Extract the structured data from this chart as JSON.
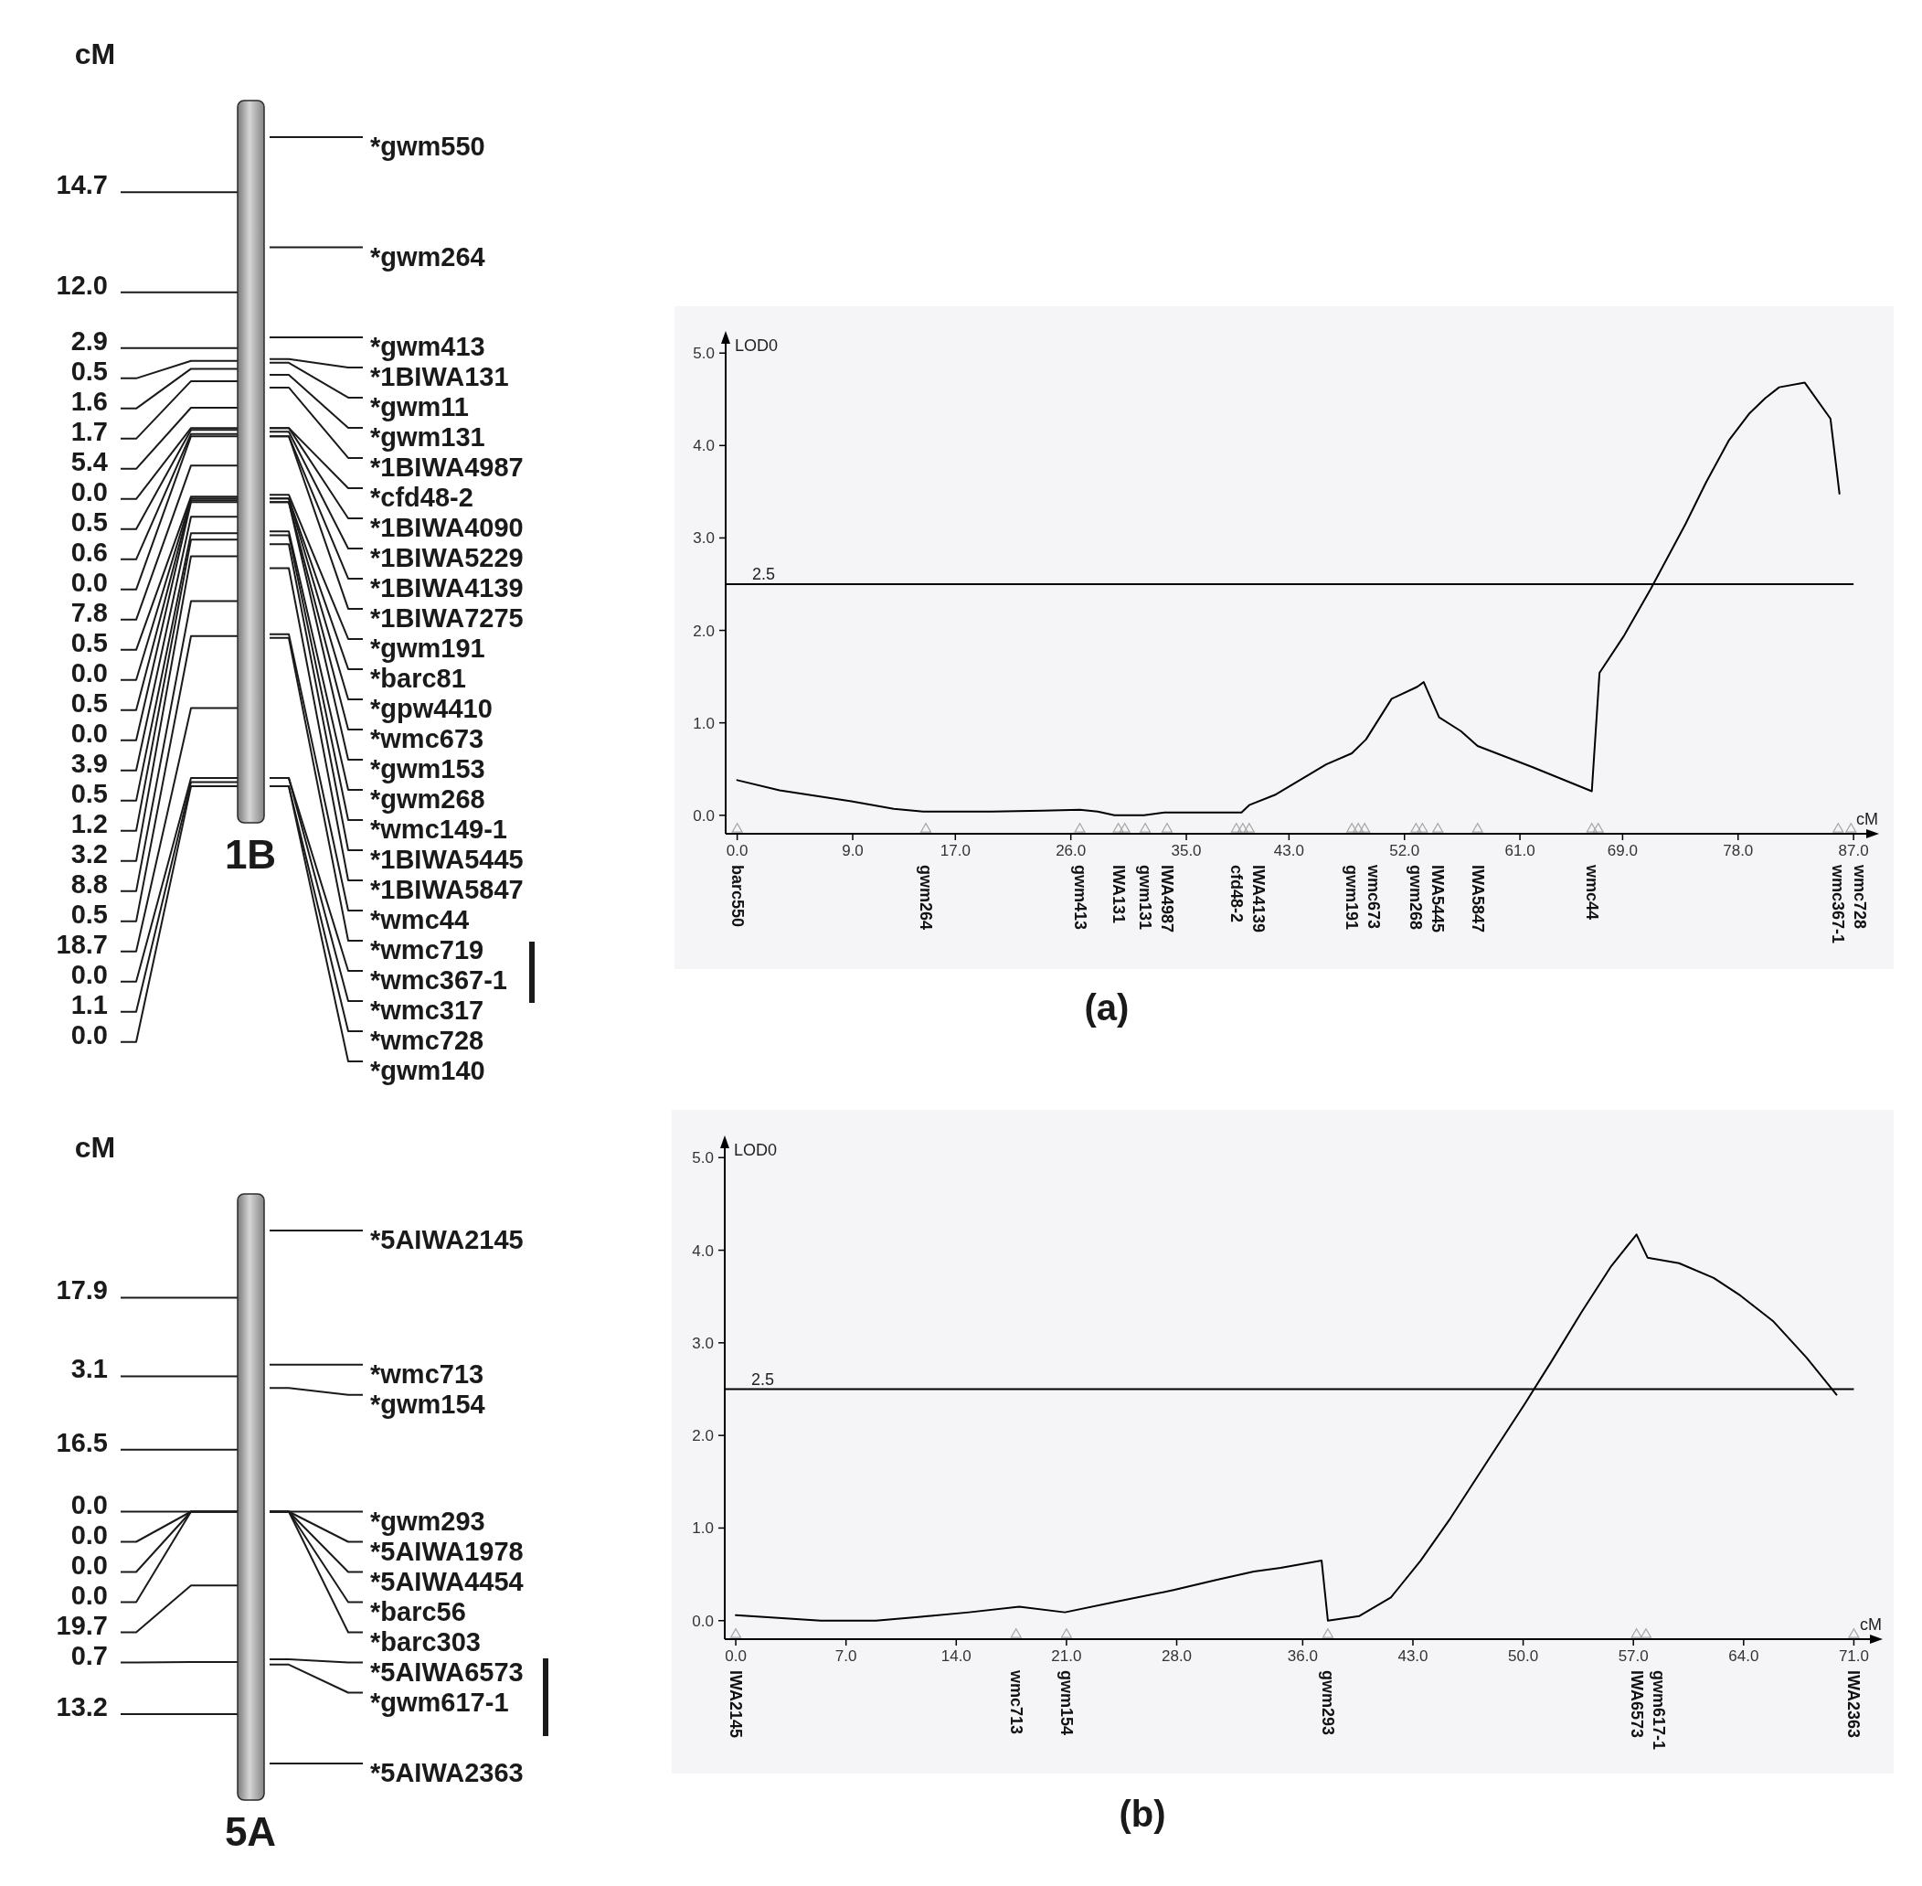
{
  "chart_data": [
    {
      "type": "other",
      "title": "1B",
      "ylabel": "cM",
      "categories": [
        "*gwm550",
        "*gwm264",
        "*gwm413",
        "*1BIWA131",
        "*gwm11",
        "*gwm131",
        "*1BIWA4987",
        "*cfd48-2",
        "*1BIWA4090",
        "*1BIWA5229",
        "*1BIWA4139",
        "*1BIWA7275",
        "*gwm191",
        "*barc81",
        "*gpw4410",
        "*wmc673",
        "*gwm153",
        "*gwm268",
        "*wmc149-1",
        "*1BIWA5445",
        "*1BIWA5847",
        "*wmc44",
        "*wmc719",
        "*wmc367-1",
        "*wmc317",
        "*wmc728",
        "*gwm140"
      ],
      "values": [
        null,
        14.7,
        12.0,
        2.9,
        0.5,
        1.6,
        1.7,
        5.4,
        0.0,
        0.5,
        0.6,
        0.0,
        7.8,
        0.5,
        0.0,
        0.5,
        0.0,
        3.9,
        0.5,
        1.2,
        3.2,
        8.8,
        0.5,
        18.7,
        0.0,
        1.1,
        0.0
      ],
      "value_labels": [
        null,
        "14.7",
        "12.0",
        "2.9",
        "0.5",
        "1.6",
        "1.7",
        "5.4",
        "0.0",
        "0.5",
        "0.6",
        "0.0",
        "7.8",
        "0.5",
        "0.0",
        "0.5",
        "0.0",
        "3.9",
        "0.5",
        "1.2",
        "3.2",
        "8.8",
        "0.5",
        "18.7",
        "0.0",
        "1.1",
        "0.0"
      ]
    },
    {
      "type": "line",
      "title": "(a)",
      "xlabel": "cM",
      "ylabel": "LOD0",
      "xlim": [
        -0.9,
        88.7
      ],
      "xticks": [
        {
          "value": 0,
          "label": "0.0"
        },
        {
          "value": 9,
          "label": "9.0"
        },
        {
          "value": 17,
          "label": "17.0"
        },
        {
          "value": 26,
          "label": "26.0"
        },
        {
          "value": 35,
          "label": "35.0"
        },
        {
          "value": 43,
          "label": "43.0"
        },
        {
          "value": 52,
          "label": "52.0"
        },
        {
          "value": 61,
          "label": "61.0"
        },
        {
          "value": 69,
          "label": "69.0"
        },
        {
          "value": 78,
          "label": "78.0"
        },
        {
          "value": 87,
          "label": "87.0"
        }
      ],
      "ylim": [
        -0.2,
        5.2
      ],
      "yticks": [
        {
          "value": 0,
          "label": "0.0"
        },
        {
          "value": 1,
          "label": "1.0"
        },
        {
          "value": 2,
          "label": "2.0"
        },
        {
          "value": 3,
          "label": "3.0"
        },
        {
          "value": 4,
          "label": "4.0"
        },
        {
          "value": 5,
          "label": "5.0"
        }
      ],
      "ref_lines": [
        {
          "axis": "y",
          "value": 2.5,
          "label": "2.5",
          "color": "#000000"
        }
      ],
      "series": [
        {
          "type": "line",
          "color": "#000000",
          "x": [
            0,
            3.3,
            8.9,
            12.2,
            14.5,
            19.8,
            23.8,
            26.7,
            28.1,
            29.4,
            31.7,
            33.3,
            39.3,
            39.9,
            41.9,
            45.9,
            47.9,
            49.0,
            51.0,
            53.0,
            53.5,
            54.7,
            56.4,
            57.7,
            62.0,
            66.6,
            67.2,
            69.1,
            71.2,
            73.9,
            75.5,
            77.3,
            78.9,
            80.1,
            81.2,
            83.2,
            85.2,
            85.9
          ],
          "values": [
            0.38,
            0.27,
            0.15,
            0.07,
            0.04,
            0.04,
            0.05,
            0.06,
            0.04,
            0.0,
            0.0,
            0.03,
            0.03,
            0.11,
            0.22,
            0.55,
            0.67,
            0.82,
            1.26,
            1.39,
            1.44,
            1.06,
            0.91,
            0.75,
            0.52,
            0.26,
            1.54,
            1.94,
            2.45,
            3.15,
            3.6,
            4.06,
            4.35,
            4.51,
            4.63,
            4.68,
            4.29,
            3.48
          ]
        },
        {
          "type": "scatter",
          "color": "#a6a6a6",
          "marker": "triangle",
          "x": [
            0,
            14.7,
            26.7,
            29.7,
            30.2,
            31.8,
            33.5,
            38.9,
            39.4,
            39.9,
            47.9,
            48.4,
            48.9,
            52.9,
            53.4,
            54.6,
            57.7,
            66.6,
            67.1,
            85.8,
            86.8
          ],
          "values": [
            -0.15,
            -0.15,
            -0.15,
            -0.15,
            -0.15,
            -0.15,
            -0.15,
            -0.15,
            -0.15,
            -0.15,
            -0.15,
            -0.15,
            -0.15,
            -0.15,
            -0.15,
            -0.15,
            -0.15,
            -0.15,
            -0.15,
            -0.15,
            -0.15
          ]
        }
      ],
      "annotations": [
        {
          "text": "barc550",
          "x": 0,
          "y": -0.15
        },
        {
          "text": "gwm264",
          "x": 14.7,
          "y": -0.15
        },
        {
          "text": "gwm413",
          "x": 26.7,
          "y": -0.15
        },
        {
          "text": "IWA131",
          "x": 29.7,
          "y": -0.15
        },
        {
          "text": "gwm131",
          "x": 31.8,
          "y": -0.15
        },
        {
          "text": "IWA4987",
          "x": 33.5,
          "y": -0.15
        },
        {
          "text": "cfd48-2",
          "x": 38.9,
          "y": -0.15
        },
        {
          "text": "IWA4139",
          "x": 39.9,
          "y": -0.15
        },
        {
          "text": "gwm191",
          "x": 47.9,
          "y": -0.15
        },
        {
          "text": "wmc673",
          "x": 48.9,
          "y": -0.15
        },
        {
          "text": "gwm268",
          "x": 52.9,
          "y": -0.15
        },
        {
          "text": "IWA5445",
          "x": 54.6,
          "y": -0.15
        },
        {
          "text": "IWA5847",
          "x": 57.7,
          "y": -0.15
        },
        {
          "text": "wmc44",
          "x": 66.6,
          "y": -0.15
        },
        {
          "text": "wmc367-1",
          "x": 85.8,
          "y": -0.15
        },
        {
          "text": "wmc728",
          "x": 86.8,
          "y": -0.15
        }
      ]
    },
    {
      "type": "other",
      "title": "5A",
      "ylabel": "cM",
      "categories": [
        "*5AIWA2145",
        "*wmc713",
        "*gwm154",
        "*gwm293",
        "*5AIWA1978",
        "*5AIWA4454",
        "*barc56",
        "*barc303",
        "*5AIWA6573",
        "*gwm617-1",
        "*5AIWA2363"
      ],
      "values": [
        null,
        17.9,
        3.1,
        16.5,
        0.0,
        0.0,
        0.0,
        0.0,
        19.7,
        0.7,
        13.2
      ],
      "value_labels": [
        null,
        "17.9",
        "3.1",
        "16.5",
        "0.0",
        "0.0",
        "0.0",
        "0.0",
        "19.7",
        "0.7",
        "13.2"
      ]
    },
    {
      "type": "line",
      "title": "(b)",
      "xlabel": "cM",
      "ylabel": "LOD0",
      "xlim": [
        -0.7,
        72.6
      ],
      "xticks": [
        {
          "value": 0,
          "label": "0.0"
        },
        {
          "value": 7,
          "label": "7.0"
        },
        {
          "value": 14,
          "label": "14.0"
        },
        {
          "value": 21,
          "label": "21.0"
        },
        {
          "value": 28,
          "label": "28.0"
        },
        {
          "value": 36,
          "label": "36.0"
        },
        {
          "value": 43,
          "label": "43.0"
        },
        {
          "value": 50,
          "label": "50.0"
        },
        {
          "value": 57,
          "label": "57.0"
        },
        {
          "value": 64,
          "label": "64.0"
        },
        {
          "value": 71,
          "label": "71.0"
        }
      ],
      "ylim": [
        -0.2,
        5.2
      ],
      "yticks": [
        {
          "value": 0,
          "label": "0.0"
        },
        {
          "value": 1,
          "label": "1.0"
        },
        {
          "value": 2,
          "label": "2.0"
        },
        {
          "value": 3,
          "label": "3.0"
        },
        {
          "value": 4,
          "label": "4.0"
        },
        {
          "value": 5,
          "label": "5.0"
        }
      ],
      "ref_lines": [
        {
          "axis": "y",
          "value": 2.5,
          "label": "2.5",
          "color": "#000000"
        }
      ],
      "series": [
        {
          "type": "line",
          "color": "#000000",
          "x": [
            0,
            2.7,
            5.4,
            8.9,
            11.6,
            14.8,
            18.0,
            20.9,
            24.3,
            27.8,
            30.5,
            32.9,
            34.6,
            37.2,
            37.6,
            39.6,
            41.6,
            43.5,
            45.4,
            47.8,
            50.1,
            51.8,
            53.7,
            55.6,
            57.2,
            57.9,
            59.9,
            62.1,
            63.8,
            65.9,
            68.0,
            69.9
          ],
          "values": [
            0.06,
            0.03,
            0.0,
            0.0,
            0.04,
            0.09,
            0.15,
            0.09,
            0.21,
            0.33,
            0.44,
            0.53,
            0.57,
            0.65,
            0.0,
            0.05,
            0.25,
            0.65,
            1.11,
            1.74,
            2.34,
            2.8,
            3.33,
            3.83,
            4.17,
            3.92,
            3.86,
            3.7,
            3.51,
            3.23,
            2.84,
            2.44
          ]
        },
        {
          "type": "scatter",
          "color": "#a6a6a6",
          "marker": "triangle",
          "x": [
            0,
            17.8,
            21.0,
            37.6,
            57.2,
            57.8,
            71.0
          ],
          "values": [
            -0.15,
            -0.15,
            -0.15,
            -0.15,
            -0.15,
            -0.15,
            -0.15
          ]
        }
      ],
      "annotations": [
        {
          "text": "IWA2145",
          "x": 0,
          "y": -0.15
        },
        {
          "text": "wmc713",
          "x": 17.8,
          "y": -0.15
        },
        {
          "text": "gwm154",
          "x": 21.0,
          "y": -0.15
        },
        {
          "text": "gwm293",
          "x": 37.6,
          "y": -0.15
        },
        {
          "text": "IWA6573",
          "x": 57.2,
          "y": -0.15
        },
        {
          "text": "gwm617-1",
          "x": 57.8,
          "y": -0.15
        },
        {
          "text": "IWA2363",
          "x": 71.0,
          "y": -0.15
        }
      ]
    }
  ]
}
